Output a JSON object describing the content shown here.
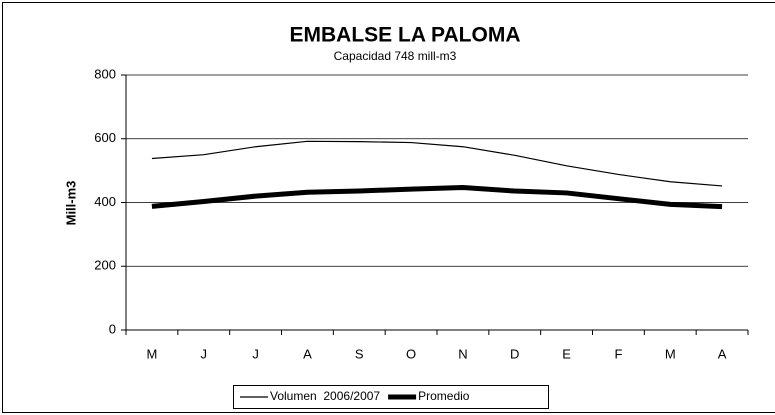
{
  "chart_data": {
    "type": "line",
    "title": "EMBALSE LA PALOMA",
    "subtitle": "Capacidad 748 mill-m3",
    "y_label": "Mill-m3",
    "categories": [
      "M",
      "J",
      "J",
      "A",
      "S",
      "O",
      "N",
      "D",
      "E",
      "F",
      "M",
      "A"
    ],
    "series": [
      {
        "name": "Volumen  2006/2007",
        "color": "#000000",
        "values": [
          538,
          550,
          575,
          592,
          591,
          588,
          575,
          548,
          515,
          488,
          465,
          452
        ]
      },
      {
        "name": "Promedio",
        "color": "#000000",
        "values": [
          388,
          403,
          420,
          432,
          436,
          442,
          447,
          436,
          430,
          412,
          394,
          387
        ]
      }
    ],
    "ylim": [
      0,
      800
    ],
    "yticks": [
      0,
      200,
      400,
      600,
      800
    ],
    "grid": true,
    "legend": "bottom"
  }
}
